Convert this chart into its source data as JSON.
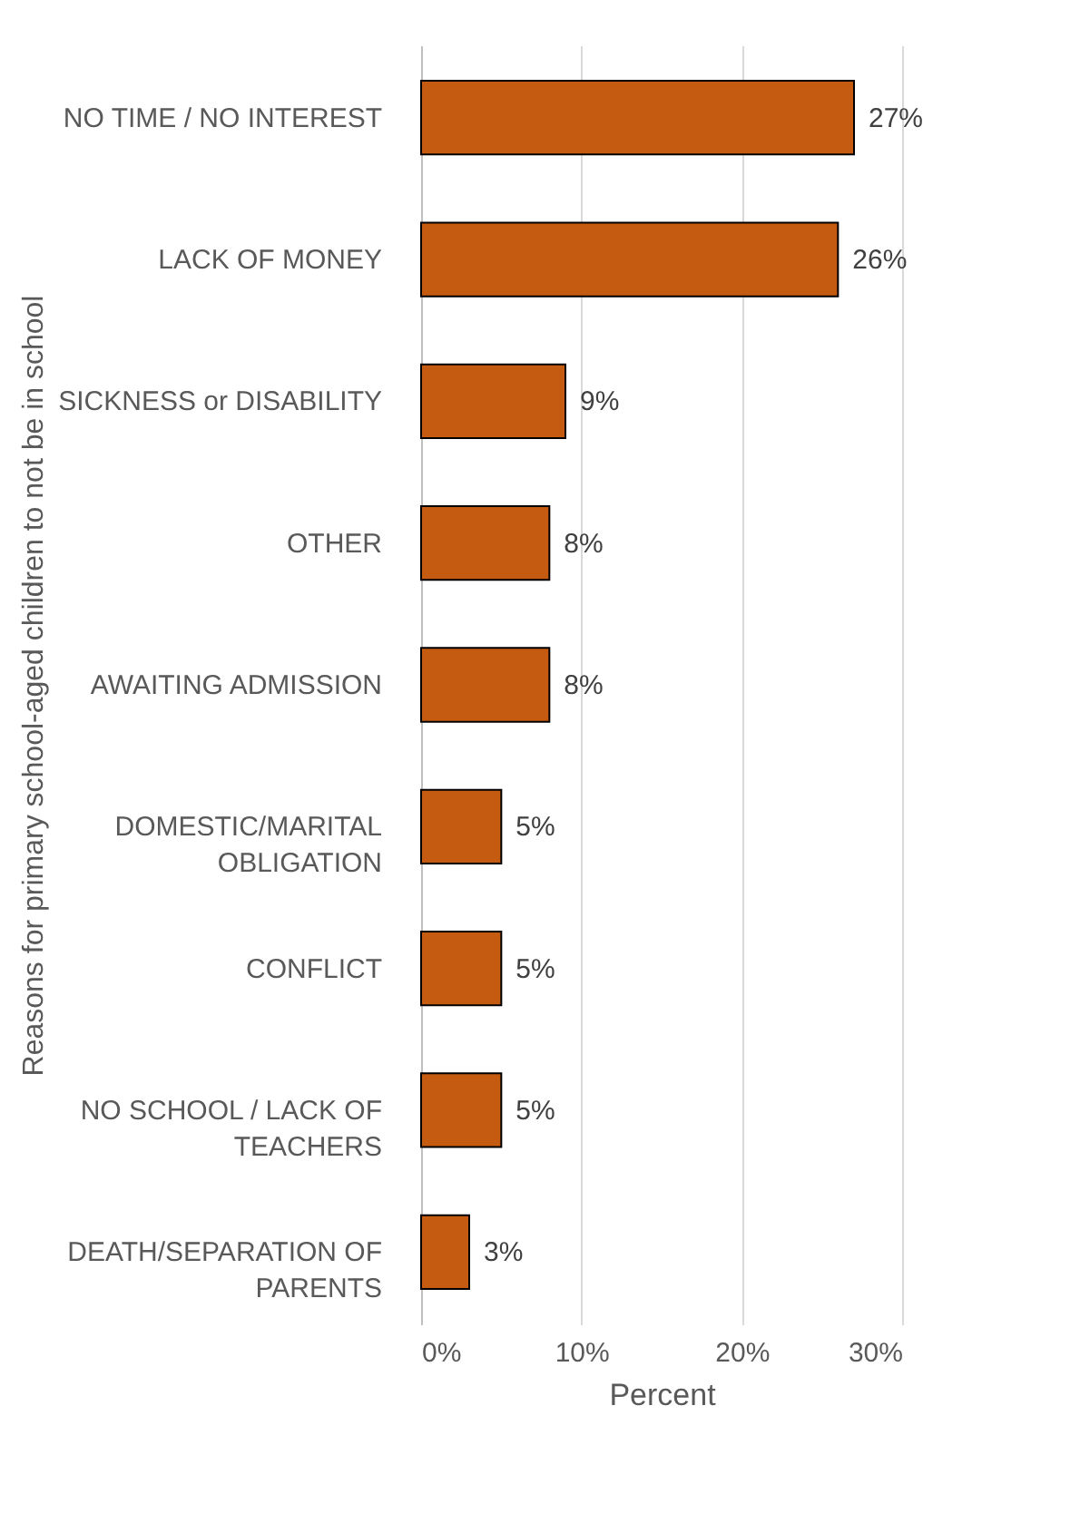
{
  "chart_data": {
    "type": "bar",
    "orientation": "horizontal",
    "xlabel": "Percent",
    "ylabel": "Reasons for primary school-aged children to not be in school",
    "categories": [
      "NO TIME / NO INTEREST",
      "LACK OF MONEY",
      "SICKNESS or DISABILITY",
      "OTHER",
      "AWAITING ADMISSION",
      "DOMESTIC/MARITAL OBLIGATION",
      "CONFLICT",
      "NO SCHOOL / LACK OF TEACHERS",
      "DEATH/SEPARATION OF PARENTS"
    ],
    "values": [
      27,
      26,
      9,
      8,
      8,
      5,
      5,
      5,
      3
    ],
    "value_labels": [
      "27%",
      "26%",
      "9%",
      "8%",
      "8%",
      "5%",
      "5%",
      "5%",
      "3%"
    ],
    "color": "#c55a11",
    "xlim": [
      0,
      30
    ],
    "xticks": [
      {
        "value": 0,
        "label": "0%"
      },
      {
        "value": 10,
        "label": "10%"
      },
      {
        "value": 20,
        "label": "20%"
      },
      {
        "value": 30,
        "label": "30%"
      }
    ],
    "grid": "x"
  }
}
